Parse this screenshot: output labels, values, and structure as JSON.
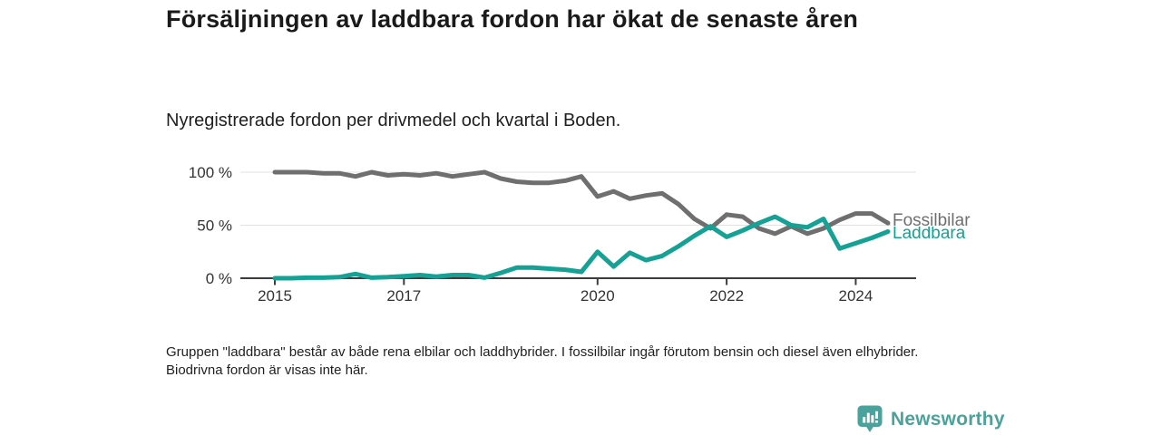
{
  "header": {
    "title": "Försäljningen av laddbara fordon har ökat de senaste åren",
    "subtitle": "Nyregistrerade fordon per drivmedel och kvartal i Boden."
  },
  "chart_data": {
    "type": "line",
    "title": "Försäljningen av laddbara fordon har ökat de senaste åren",
    "subtitle": "Nyregistrerade fordon per drivmedel och kvartal i Boden.",
    "x_unit": "quarter",
    "categories": [
      "2015Q1",
      "2015Q2",
      "2015Q3",
      "2015Q4",
      "2016Q1",
      "2016Q2",
      "2016Q3",
      "2016Q4",
      "2017Q1",
      "2017Q2",
      "2017Q3",
      "2017Q4",
      "2018Q1",
      "2018Q2",
      "2018Q3",
      "2018Q4",
      "2019Q1",
      "2019Q2",
      "2019Q3",
      "2019Q4",
      "2020Q1",
      "2020Q2",
      "2020Q3",
      "2020Q4",
      "2021Q1",
      "2021Q2",
      "2021Q3",
      "2021Q4",
      "2022Q1",
      "2022Q2",
      "2022Q3",
      "2022Q4",
      "2023Q1",
      "2023Q2",
      "2023Q3",
      "2023Q4",
      "2024Q1",
      "2024Q2",
      "2024Q3"
    ],
    "series": [
      {
        "name": "Fossilbilar",
        "color": "#6f6f6f",
        "values": [
          100,
          100,
          100,
          99,
          99,
          96,
          100,
          97,
          98,
          97,
          99,
          96,
          98,
          100,
          94,
          91,
          90,
          90,
          92,
          96,
          77,
          82,
          75,
          78,
          80,
          70,
          56,
          47,
          60,
          58,
          47,
          42,
          49,
          42,
          47,
          55,
          61,
          61,
          52
        ]
      },
      {
        "name": "Laddbara",
        "color": "#16a195",
        "values": [
          0,
          0,
          0.5,
          0.5,
          1,
          4,
          0.5,
          1,
          2,
          3,
          1.5,
          3,
          3,
          0.5,
          5,
          10,
          10,
          9,
          8,
          6,
          25,
          11,
          24,
          17,
          21,
          30,
          40,
          49,
          39,
          45,
          52,
          58,
          50,
          48,
          56,
          28,
          33,
          38,
          44
        ]
      }
    ],
    "ylim": [
      0,
      100
    ],
    "ylabel": "",
    "xlabel": "",
    "y_ticks": [
      {
        "label": "100 %",
        "value": 100
      },
      {
        "label": "50 %",
        "value": 50
      },
      {
        "label": "0 %",
        "value": 0
      }
    ],
    "x_ticks": [
      {
        "label": "2015",
        "q": 0
      },
      {
        "label": "2017",
        "q": 8
      },
      {
        "label": "2020",
        "q": 20
      },
      {
        "label": "2022",
        "q": 28
      },
      {
        "label": "2024",
        "q": 36
      }
    ],
    "grid": "horizontal-only",
    "legend_position": "line-end-labels"
  },
  "footnote": {
    "text": "Gruppen \"laddbara\" består av både rena elbilar och laddhybrider. I fossilbilar ingår förutom bensin och diesel även elhybrider. Biodrivna fordon är visas inte här."
  },
  "branding": {
    "logo_text": "Newsworthy",
    "logo_color": "#4ba29b",
    "logo_icon": "bar-chart-speech-bubble"
  }
}
